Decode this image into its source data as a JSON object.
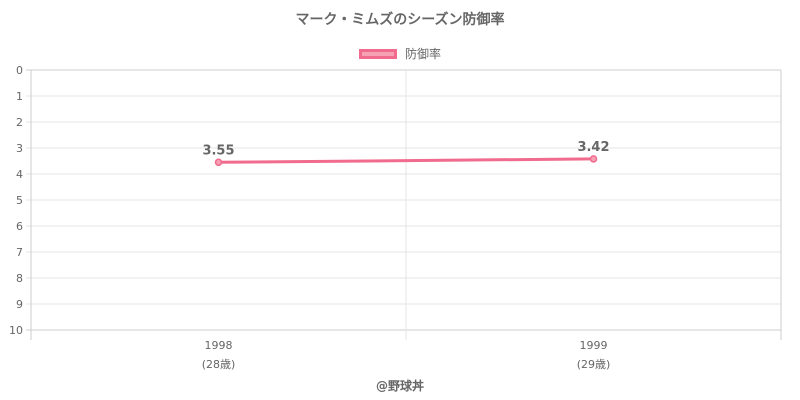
{
  "chart_data": {
    "type": "line",
    "title": "マーク・ミムズのシーズン防御率",
    "categories": [
      "1998",
      "1999"
    ],
    "category_sublabels": [
      "(28歳)",
      "(29歳)"
    ],
    "series": [
      {
        "name": "防御率",
        "values": [
          3.55,
          3.42
        ],
        "color": "#f06b8d",
        "fill": "#f7a1b5"
      }
    ],
    "y_ticks": [
      "0",
      "1",
      "2",
      "3",
      "4",
      "5",
      "6",
      "7",
      "8",
      "9",
      "10"
    ],
    "ylim": [
      0,
      10
    ],
    "y_reversed": true,
    "grid": true,
    "legend_position": "top-center"
  },
  "credit": "@野球丼"
}
